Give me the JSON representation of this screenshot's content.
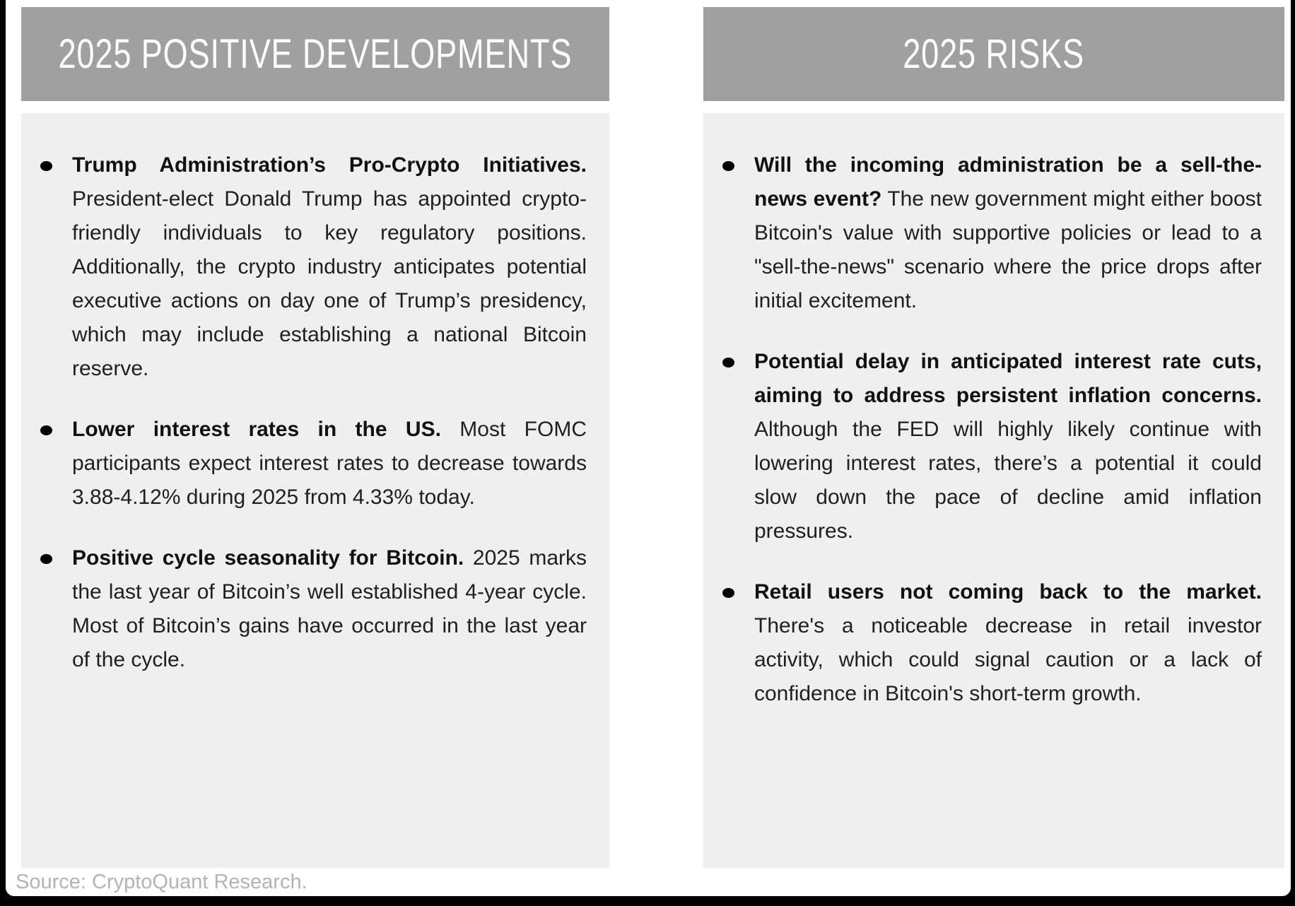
{
  "columns": [
    {
      "title": "2025 POSITIVE DEVELOPMENTS",
      "bullets": [
        {
          "lead": "Trump Administration’s Pro-Crypto Initiatives.",
          "body": " President-elect Donald Trump has appointed crypto-friendly individuals to key regulatory positions. Additionally, the crypto industry anticipates potential executive actions on day one of Trump’s presidency, which may include establishing a national Bitcoin reserve."
        },
        {
          "lead": "Lower interest rates in the US.",
          "body": " Most FOMC participants expect interest rates to decrease towards 3.88-4.12% during 2025 from 4.33% today."
        },
        {
          "lead": "Positive cycle seasonality for Bitcoin.",
          "body": " 2025 marks the last year of Bitcoin’s well established 4-year cycle. Most of Bitcoin’s gains have occurred in the last year of the cycle."
        }
      ]
    },
    {
      "title": "2025 RISKS",
      "bullets": [
        {
          "lead": "Will the incoming administration be a sell-the-news event?",
          "body": " The new government might either boost Bitcoin's value with supportive policies or lead to a \"sell-the-news\" scenario where the price drops after initial excitement."
        },
        {
          "lead": "Potential delay in anticipated interest rate cuts, aiming to address persistent inflation concerns.",
          "body": " Although the FED will highly likely continue with lowering interest rates, there’s a potential it could slow down the pace of decline amid inflation pressures."
        },
        {
          "lead": "Retail users not coming back to the market.",
          "body": " There's a noticeable decrease in retail investor activity, which could signal caution or a lack of confidence in Bitcoin's short-term growth."
        }
      ]
    }
  ],
  "footer": {
    "source": "Source: CryptoQuant Research."
  },
  "colors": {
    "frame": "#000000",
    "sheet_bg": "#ffffff",
    "header_bg": "#a0a0a0",
    "header_text": "#fdfdfd",
    "panel_bg": "#efefef",
    "body_text": "#1f1f1f",
    "source_text": "#b3b3b3"
  }
}
